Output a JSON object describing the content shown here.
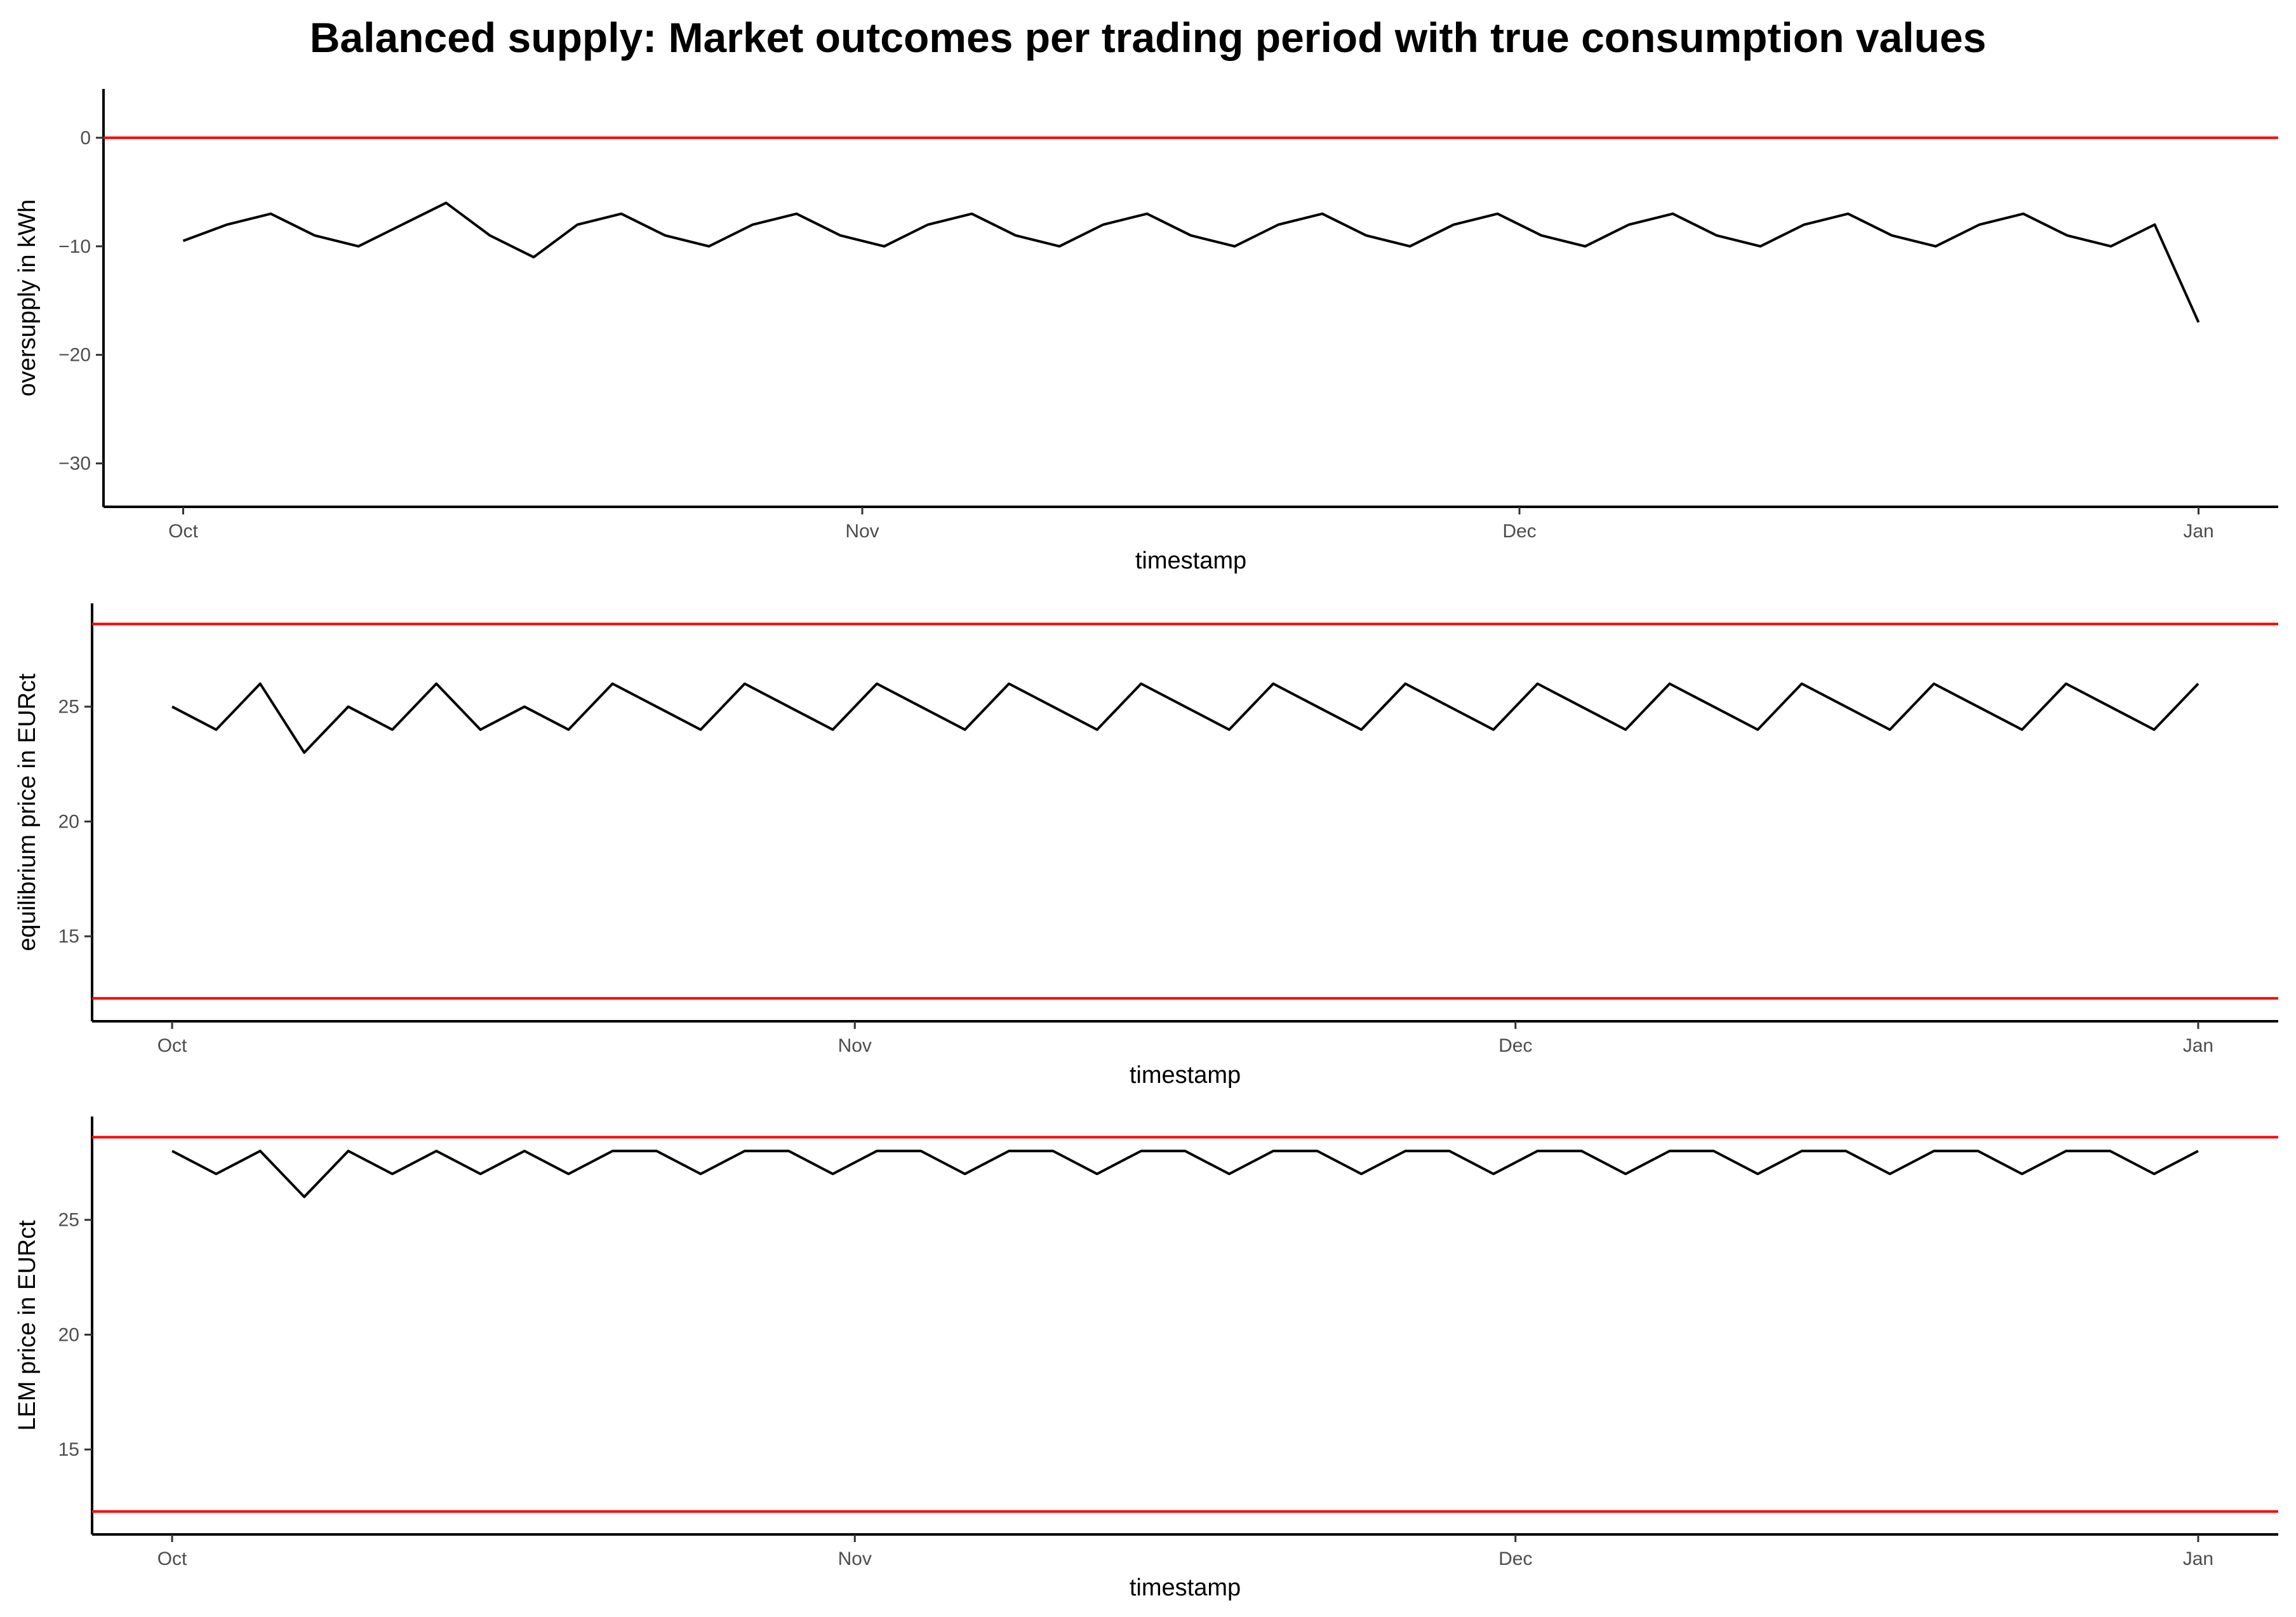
{
  "page": {
    "title": "Balanced supply: Market outcomes per trading period with true consumption values"
  },
  "colors": {
    "series": "#000000",
    "reference": "#ff0000",
    "axis": "#000000",
    "tick_label": "#4d4d4d"
  },
  "chart_data": [
    {
      "type": "line",
      "title": "Balanced supply: Market outcomes per trading period with true consumption values",
      "xlabel": "timestamp",
      "ylabel": "oversupply in kWh",
      "x_start": "Oct",
      "x_ticks": [
        "Oct",
        "Nov",
        "Dec",
        "Jan"
      ],
      "xlim": [
        "Sep 28",
        "Jan 3"
      ],
      "y_ticks": [
        0,
        -10,
        -20,
        -30
      ],
      "ylim": [
        -34,
        4.5
      ],
      "grid": false,
      "reference_lines": [
        0
      ],
      "series": [
        {
          "x": [
            0,
            2,
            4,
            6,
            8,
            10,
            12,
            14,
            16,
            18,
            20,
            22,
            24,
            26,
            28,
            30,
            32,
            34,
            36,
            38,
            40,
            42,
            44,
            46,
            48,
            50,
            52,
            54,
            56,
            58,
            60,
            62,
            64,
            66,
            68,
            70,
            72,
            74,
            76,
            78,
            80,
            82,
            84,
            86,
            88,
            90,
            92
          ],
          "values": [
            -9.5,
            -8,
            -7,
            -9,
            -10,
            -8,
            -6,
            -9,
            -11,
            -8,
            -7,
            -9,
            -10,
            -8,
            -7,
            -9,
            -10,
            -8,
            -7,
            -9,
            -10,
            -8,
            -7,
            -9,
            -10,
            -8,
            -7,
            -9,
            -10,
            -8,
            -7,
            -9,
            -10,
            -8,
            -7,
            -9,
            -10,
            -8,
            -7,
            -9,
            -10,
            -8,
            -7,
            -9,
            -10,
            -8,
            -17
          ]
        }
      ]
    },
    {
      "type": "line",
      "xlabel": "timestamp",
      "ylabel": "equilibrium price in EURct",
      "x_start": "Oct",
      "x_ticks": [
        "Oct",
        "Nov",
        "Dec",
        "Jan"
      ],
      "xlim": [
        "Sep 28",
        "Jan 3"
      ],
      "y_ticks": [
        15,
        20,
        25
      ],
      "ylim": [
        11.3,
        29.5
      ],
      "grid": false,
      "reference_lines": [
        12.3,
        28.6
      ],
      "series": [
        {
          "x": [
            0,
            2,
            4,
            6,
            8,
            10,
            12,
            14,
            16,
            18,
            20,
            22,
            24,
            26,
            28,
            30,
            32,
            34,
            36,
            38,
            40,
            42,
            44,
            46,
            48,
            50,
            52,
            54,
            56,
            58,
            60,
            62,
            64,
            66,
            68,
            70,
            72,
            74,
            76,
            78,
            80,
            82,
            84,
            86,
            88,
            90,
            92
          ],
          "values": [
            25,
            24,
            26,
            23,
            25,
            24,
            26,
            24,
            25,
            24,
            26,
            25,
            24,
            26,
            25,
            24,
            26,
            25,
            24,
            26,
            25,
            24,
            26,
            25,
            24,
            26,
            25,
            24,
            26,
            25,
            24,
            26,
            25,
            24,
            26,
            25,
            24,
            26,
            25,
            24,
            26,
            25,
            24,
            26,
            25,
            24,
            26
          ]
        }
      ]
    },
    {
      "type": "line",
      "xlabel": "timestamp",
      "ylabel": "LEM price in EURct",
      "x_start": "Oct",
      "x_ticks": [
        "Oct",
        "Nov",
        "Dec",
        "Jan"
      ],
      "xlim": [
        "Sep 28",
        "Jan 3"
      ],
      "y_ticks": [
        15,
        20,
        25
      ],
      "ylim": [
        11.3,
        29.5
      ],
      "grid": false,
      "reference_lines": [
        12.3,
        28.6
      ],
      "series": [
        {
          "x": [
            0,
            2,
            4,
            6,
            8,
            10,
            12,
            14,
            16,
            18,
            20,
            22,
            24,
            26,
            28,
            30,
            32,
            34,
            36,
            38,
            40,
            42,
            44,
            46,
            48,
            50,
            52,
            54,
            56,
            58,
            60,
            62,
            64,
            66,
            68,
            70,
            72,
            74,
            76,
            78,
            80,
            82,
            84,
            86,
            88,
            90,
            92
          ],
          "values": [
            28,
            27,
            28,
            26,
            28,
            27,
            28,
            27,
            28,
            27,
            28,
            28,
            27,
            28,
            28,
            27,
            28,
            28,
            27,
            28,
            28,
            27,
            28,
            28,
            27,
            28,
            28,
            27,
            28,
            28,
            27,
            28,
            28,
            27,
            28,
            28,
            27,
            28,
            28,
            27,
            28,
            28,
            27,
            28,
            28,
            27,
            28
          ]
        }
      ]
    }
  ]
}
